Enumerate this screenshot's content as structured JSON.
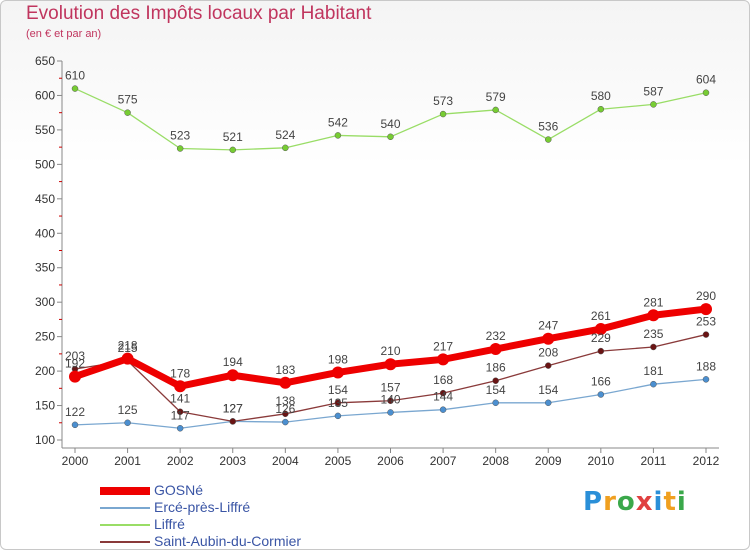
{
  "title": "Evolution des Impôts locaux par Habitant",
  "subtitle": "(en € et par an)",
  "logo": {
    "text": "Proxiti",
    "colors": [
      "#2a8fd8",
      "#f0a020",
      "#3aa84a",
      "#e04040",
      "#2a8fd8",
      "#f0a020",
      "#3aa84a"
    ]
  },
  "chart_data": {
    "type": "line",
    "title": "Evolution des Impôts locaux par Habitant",
    "subtitle": "(en € et par an)",
    "xlabel": "",
    "ylabel": "",
    "x": [
      "2000",
      "2001",
      "2002",
      "2003",
      "2004",
      "2005",
      "2006",
      "2007",
      "2008",
      "2009",
      "2010",
      "2011",
      "2012"
    ],
    "ylim": [
      100,
      650
    ],
    "yticks": [
      100,
      150,
      200,
      250,
      300,
      350,
      400,
      450,
      500,
      550,
      600,
      650
    ],
    "grid": false,
    "legend_position": "bottom-left",
    "series": [
      {
        "name": "GOSNé",
        "color": "#ee0000",
        "marker": "#ee0000",
        "width": 7,
        "values": [
          192,
          218,
          178,
          194,
          183,
          198,
          210,
          217,
          232,
          247,
          261,
          281,
          290
        ],
        "labels": [
          "192",
          "218",
          "178",
          "194",
          "183",
          "198",
          "210",
          "217",
          "232",
          "247",
          "261",
          "281",
          "290"
        ]
      },
      {
        "name": "Ercé-près-Liffré",
        "color": "#7aa7d0",
        "marker": "#4b8fd0",
        "width": 1.3,
        "values": [
          122,
          125,
          117,
          127,
          126,
          135,
          140,
          144,
          154,
          154,
          166,
          181,
          188
        ],
        "labels": [
          "122",
          "125",
          "117",
          "127",
          "126",
          "135",
          "140",
          "144",
          "154",
          "154",
          "166",
          "181",
          "188"
        ]
      },
      {
        "name": "Liffré",
        "color": "#99dd66",
        "marker": "#77cc33",
        "width": 1.3,
        "values": [
          610,
          575,
          523,
          521,
          524,
          542,
          540,
          573,
          579,
          536,
          580,
          587,
          604
        ],
        "labels": [
          "610",
          "575",
          "523",
          "521",
          "524",
          "542",
          "540",
          "573",
          "579",
          "536",
          "580",
          "587",
          "604"
        ]
      },
      {
        "name": "Saint-Aubin-du-Cormier",
        "color": "#8a3a3a",
        "marker": "#6a1414",
        "width": 1.3,
        "values": [
          203,
          215,
          141,
          127,
          138,
          154,
          157,
          168,
          186,
          208,
          229,
          235,
          253
        ],
        "labels": [
          "203",
          "215",
          "141",
          "127",
          "138",
          "154",
          "157",
          "168",
          "186",
          "208",
          "229",
          "235",
          "253"
        ]
      }
    ]
  }
}
